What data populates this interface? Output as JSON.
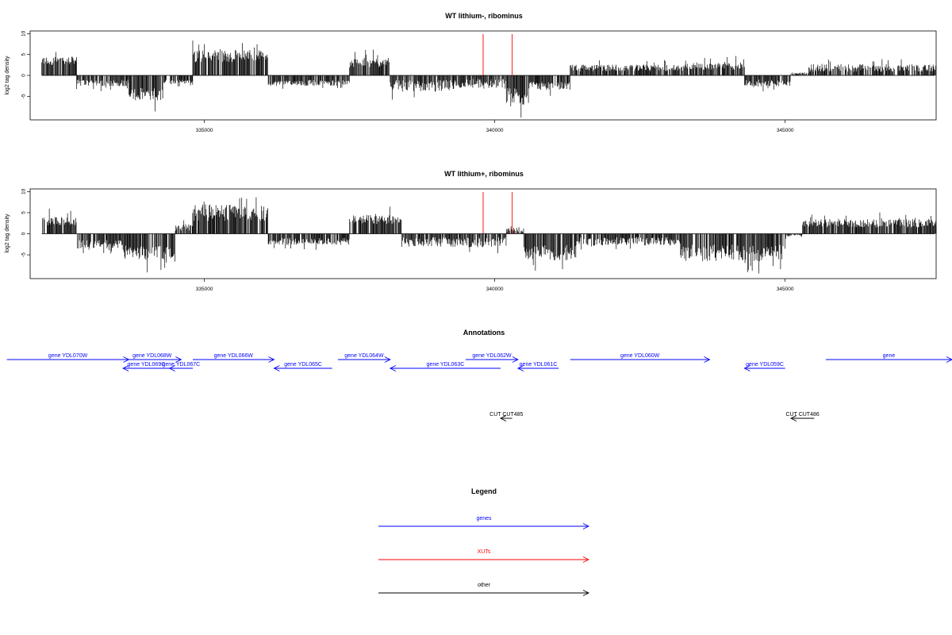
{
  "chart_data": [
    {
      "type": "bar",
      "title": "WT lithium-, ribominus",
      "ylabel": "log2 tag density",
      "xlabel": "",
      "xlim": [
        332000,
        347600
      ],
      "ylim": [
        -10,
        10
      ],
      "x_ticks": [
        335000,
        340000,
        345000
      ],
      "x_tick_labels": [
        "335000",
        "340000",
        "345000"
      ],
      "y_ticks": [
        -5,
        0,
        5,
        10
      ],
      "y_tick_labels": [
        "-5",
        "0",
        "5",
        "10"
      ],
      "grid": false,
      "segments": [
        {
          "start": 332200,
          "end": 332800,
          "level": 3.5,
          "var": 1.0
        },
        {
          "start": 332800,
          "end": 333700,
          "level": -1.8,
          "var": 0.8
        },
        {
          "start": 333700,
          "end": 334300,
          "level": -4.5,
          "var": 1.5
        },
        {
          "start": 334300,
          "end": 334800,
          "level": -1.5,
          "var": 0.5
        },
        {
          "start": 334800,
          "end": 335600,
          "level": 4.5,
          "var": 1.5
        },
        {
          "start": 335600,
          "end": 336100,
          "level": 4.8,
          "var": 1.2
        },
        {
          "start": 336100,
          "end": 337500,
          "level": -1.8,
          "var": 0.7
        },
        {
          "start": 337500,
          "end": 338200,
          "level": 3.0,
          "var": 1.2
        },
        {
          "start": 338200,
          "end": 339300,
          "level": -2.5,
          "var": 1.4
        },
        {
          "start": 339300,
          "end": 340200,
          "level": -2.0,
          "var": 1.2
        },
        {
          "start": 340200,
          "end": 340600,
          "level": -5.0,
          "var": 2.0
        },
        {
          "start": 340600,
          "end": 341300,
          "level": -2.5,
          "var": 1.0
        },
        {
          "start": 341300,
          "end": 343300,
          "level": 1.8,
          "var": 0.8
        },
        {
          "start": 343300,
          "end": 344300,
          "level": 2.2,
          "var": 0.9
        },
        {
          "start": 344300,
          "end": 345100,
          "level": -1.8,
          "var": 0.8
        },
        {
          "start": 345100,
          "end": 345400,
          "level": 0.4,
          "var": 0.3
        },
        {
          "start": 345400,
          "end": 347600,
          "level": 1.8,
          "var": 0.9
        }
      ],
      "red_lines": [
        339800,
        340300
      ]
    },
    {
      "type": "bar",
      "title": "WT lithium+, ribominus",
      "ylabel": "log2 tag density",
      "xlabel": "",
      "xlim": [
        332000,
        347600
      ],
      "ylim": [
        -10,
        10
      ],
      "x_ticks": [
        335000,
        340000,
        345000
      ],
      "x_tick_labels": [
        "335000",
        "340000",
        "345000"
      ],
      "y_ticks": [
        -5,
        0,
        5,
        10
      ],
      "y_tick_labels": [
        "-5",
        "0",
        "5",
        "10"
      ],
      "grid": false,
      "segments": [
        {
          "start": 332200,
          "end": 332800,
          "level": 3.0,
          "var": 1.0
        },
        {
          "start": 332800,
          "end": 333600,
          "level": -2.5,
          "var": 1.0
        },
        {
          "start": 333600,
          "end": 334500,
          "level": -4.5,
          "var": 1.8
        },
        {
          "start": 334500,
          "end": 334800,
          "level": 1.5,
          "var": 0.8
        },
        {
          "start": 334800,
          "end": 336100,
          "level": 5.0,
          "var": 2.0
        },
        {
          "start": 336100,
          "end": 337500,
          "level": -1.8,
          "var": 0.8
        },
        {
          "start": 337500,
          "end": 338400,
          "level": 3.5,
          "var": 1.2
        },
        {
          "start": 338400,
          "end": 340200,
          "level": -2.0,
          "var": 1.2
        },
        {
          "start": 340200,
          "end": 340500,
          "level": 1.0,
          "var": 0.8
        },
        {
          "start": 340500,
          "end": 341400,
          "level": -4.5,
          "var": 1.8
        },
        {
          "start": 341400,
          "end": 343200,
          "level": -1.8,
          "var": 1.0
        },
        {
          "start": 343200,
          "end": 345000,
          "level": -4.5,
          "var": 2.0
        },
        {
          "start": 345000,
          "end": 345300,
          "level": -0.5,
          "var": 0.4
        },
        {
          "start": 345300,
          "end": 347600,
          "level": 2.5,
          "var": 1.0
        }
      ],
      "red_lines": [
        339800,
        340300
      ]
    }
  ],
  "annotations": {
    "title": "Annotations",
    "genes": [
      {
        "label": "gene YDL070W",
        "start": 331600,
        "end": 333700,
        "row": 1,
        "dir": "right"
      },
      {
        "label": "gene YDL068W",
        "start": 333600,
        "end": 334600,
        "row": 1,
        "dir": "right"
      },
      {
        "label": "gene YDL069C",
        "start": 333600,
        "end": 334400,
        "row": 2,
        "dir": "left"
      },
      {
        "label": "gene YDL067C",
        "start": 334400,
        "end": 334800,
        "row": 2,
        "dir": "left"
      },
      {
        "label": "gene YDL066W",
        "start": 334800,
        "end": 336200,
        "row": 1,
        "dir": "right"
      },
      {
        "label": "gene YDL065C",
        "start": 336200,
        "end": 337200,
        "row": 2,
        "dir": "left"
      },
      {
        "label": "gene YDL064W",
        "start": 337300,
        "end": 338200,
        "row": 1,
        "dir": "right"
      },
      {
        "label": "gene YDL063C",
        "start": 338200,
        "end": 340100,
        "row": 2,
        "dir": "left"
      },
      {
        "label": "gene YDL062W",
        "start": 339500,
        "end": 340400,
        "row": 1,
        "dir": "right"
      },
      {
        "label": "gene YDL061C",
        "start": 340400,
        "end": 341100,
        "row": 2,
        "dir": "left"
      },
      {
        "label": "gene YDL060W",
        "start": 341300,
        "end": 343700,
        "row": 1,
        "dir": "right"
      },
      {
        "label": "gene YDL059C",
        "start": 344300,
        "end": 345000,
        "row": 2,
        "dir": "left"
      },
      {
        "label": "gene",
        "start": 345700,
        "end": 348500,
        "row": 1,
        "dir": "right"
      }
    ],
    "other": [
      {
        "label": "CUT CUT485",
        "start": 340100,
        "end": 340300,
        "row": 3,
        "dir": "left"
      },
      {
        "label": "CUT CUT486",
        "start": 345100,
        "end": 345500,
        "row": 3,
        "dir": "left"
      }
    ]
  },
  "legend": {
    "title": "Legend",
    "items": [
      {
        "label": "genes",
        "color": "#0000ff"
      },
      {
        "label": "XUTs",
        "color": "#ff0000"
      },
      {
        "label": "other",
        "color": "#000000"
      }
    ]
  },
  "colors": {
    "bars": "#000000",
    "red_marks": "#ff0000",
    "genes": "#0000ff",
    "other": "#000000"
  }
}
